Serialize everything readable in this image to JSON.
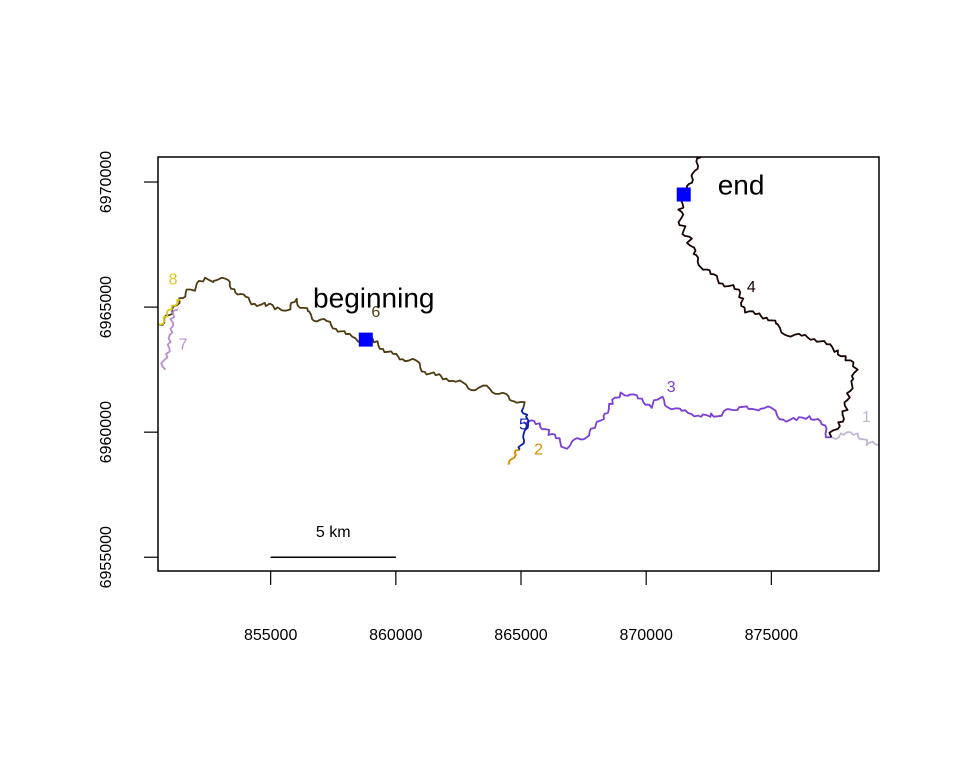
{
  "map": {
    "x_axis": {
      "range": [
        850500,
        879300
      ],
      "ticks": [
        {
          "value": 855000,
          "label": "855000"
        },
        {
          "value": 860000,
          "label": "860000"
        },
        {
          "value": 865000,
          "label": "865000"
        },
        {
          "value": 870000,
          "label": "870000"
        },
        {
          "value": 875000,
          "label": "875000"
        }
      ]
    },
    "y_axis": {
      "range": [
        6954450,
        6971000
      ],
      "ticks": [
        {
          "value": 6955000,
          "label": "6955000"
        },
        {
          "value": 6960000,
          "label": "6960000"
        },
        {
          "value": 6965000,
          "label": "6965000"
        },
        {
          "value": 6970000,
          "label": "6970000"
        }
      ]
    },
    "scale_bar": {
      "label": "5 km",
      "x_start": 855000,
      "x_end": 860000,
      "y": 6955000
    },
    "points": [
      {
        "id": "beginning",
        "label": "beginning",
        "x": 858800,
        "y": 6963700,
        "color": "#0000ff"
      },
      {
        "id": "end",
        "label": "end",
        "x": 871500,
        "y": 6969500,
        "color": "#0000ff"
      }
    ],
    "segments": [
      {
        "label": "1",
        "color": "#c0b8d4",
        "label_pos": [
          878800,
          6960400
        ],
        "path": [
          [
            877400,
            6959800
          ],
          [
            877900,
            6960000
          ],
          [
            878400,
            6959900
          ],
          [
            878800,
            6959500
          ],
          [
            879300,
            6959500
          ]
        ]
      },
      {
        "label": "2",
        "color": "#d98c00",
        "label_pos": [
          865700,
          6959100
        ],
        "path": [
          [
            864950,
            6959300
          ],
          [
            864800,
            6959000
          ],
          [
            864650,
            6959000
          ],
          [
            864500,
            6958700
          ]
        ]
      },
      {
        "label": "3",
        "color": "#7b3fd6",
        "label_pos": [
          871000,
          6961600
        ],
        "path": [
          [
            865100,
            6960400
          ],
          [
            865300,
            6960500
          ],
          [
            865700,
            6960300
          ],
          [
            866100,
            6959900
          ],
          [
            866500,
            6959700
          ],
          [
            866800,
            6959500
          ],
          [
            867200,
            6959600
          ],
          [
            867600,
            6959800
          ],
          [
            868000,
            6960300
          ],
          [
            868300,
            6960800
          ],
          [
            868700,
            6961100
          ],
          [
            869000,
            6961500
          ],
          [
            869400,
            6961600
          ],
          [
            869800,
            6961300
          ],
          [
            870200,
            6961000
          ],
          [
            870600,
            6961300
          ],
          [
            871000,
            6961100
          ],
          [
            871400,
            6960800
          ],
          [
            871800,
            6960700
          ],
          [
            872200,
            6960600
          ],
          [
            872600,
            6960800
          ],
          [
            873000,
            6960700
          ],
          [
            873400,
            6960800
          ],
          [
            873800,
            6961100
          ],
          [
            874200,
            6960900
          ],
          [
            874600,
            6961000
          ],
          [
            875000,
            6960800
          ],
          [
            875500,
            6960600
          ],
          [
            876000,
            6960500
          ],
          [
            876500,
            6960600
          ],
          [
            877000,
            6960300
          ],
          [
            877400,
            6959800
          ]
        ]
      },
      {
        "label": "4",
        "color": "#1a0505",
        "label_pos": [
          874200,
          6965600
        ],
        "path": [
          [
            872200,
            6971000
          ],
          [
            871900,
            6970200
          ],
          [
            871500,
            6969500
          ],
          [
            871300,
            6968900
          ],
          [
            871500,
            6968200
          ],
          [
            871800,
            6967600
          ],
          [
            871900,
            6967000
          ],
          [
            872200,
            6966600
          ],
          [
            872700,
            6966300
          ],
          [
            873100,
            6966000
          ],
          [
            873500,
            6965700
          ],
          [
            873800,
            6965300
          ],
          [
            874000,
            6964900
          ],
          [
            874500,
            6964700
          ],
          [
            874900,
            6964500
          ],
          [
            875200,
            6964200
          ],
          [
            875700,
            6964000
          ],
          [
            876200,
            6963800
          ],
          [
            876700,
            6963700
          ],
          [
            877200,
            6963500
          ],
          [
            877700,
            6963300
          ],
          [
            878000,
            6962900
          ],
          [
            878300,
            6962500
          ],
          [
            878300,
            6962000
          ],
          [
            878100,
            6961400
          ],
          [
            877900,
            6960800
          ],
          [
            877600,
            6960300
          ],
          [
            877400,
            6959800
          ]
        ]
      },
      {
        "label": "5",
        "color": "#0b1fb0",
        "label_pos": [
          865100,
          6960100
        ],
        "path": [
          [
            865100,
            6961000
          ],
          [
            865300,
            6960600
          ],
          [
            865200,
            6960200
          ],
          [
            865100,
            6959800
          ],
          [
            864950,
            6959500
          ],
          [
            864950,
            6959300
          ]
        ]
      },
      {
        "label": "6",
        "color": "#4d3c12",
        "label_pos": [
          859200,
          6964600
        ],
        "path": [
          [
            850500,
            6964300
          ],
          [
            851000,
            6964800
          ],
          [
            851400,
            6965300
          ],
          [
            852000,
            6965800
          ],
          [
            852400,
            6966100
          ],
          [
            852800,
            6966200
          ],
          [
            853200,
            6966000
          ],
          [
            853600,
            6965600
          ],
          [
            854000,
            6965400
          ],
          [
            854400,
            6965200
          ],
          [
            854800,
            6965000
          ],
          [
            855300,
            6964900
          ],
          [
            855700,
            6965000
          ],
          [
            856000,
            6965300
          ],
          [
            856200,
            6965000
          ],
          [
            856500,
            6964700
          ],
          [
            856800,
            6964600
          ],
          [
            857200,
            6964400
          ],
          [
            857600,
            6964100
          ],
          [
            858000,
            6963900
          ],
          [
            858400,
            6963800
          ],
          [
            858800,
            6963700
          ],
          [
            859200,
            6963500
          ],
          [
            859600,
            6963300
          ],
          [
            860000,
            6963100
          ],
          [
            860400,
            6962900
          ],
          [
            860800,
            6962700
          ],
          [
            861200,
            6962500
          ],
          [
            861600,
            6962300
          ],
          [
            862000,
            6962100
          ],
          [
            862400,
            6962000
          ],
          [
            862800,
            6961900
          ],
          [
            863200,
            6961800
          ],
          [
            863600,
            6961700
          ],
          [
            864000,
            6961600
          ],
          [
            864400,
            6961500
          ],
          [
            864800,
            6961300
          ],
          [
            865100,
            6961000
          ]
        ]
      },
      {
        "label": "7",
        "color": "#b88fd4",
        "label_pos": [
          851500,
          6963300
        ],
        "path": [
          [
            851300,
            6964900
          ],
          [
            851100,
            6964500
          ],
          [
            851000,
            6964000
          ],
          [
            850900,
            6963500
          ],
          [
            850800,
            6963000
          ],
          [
            850800,
            6962500
          ]
        ]
      },
      {
        "label": "8",
        "color": "#e0c81a",
        "label_pos": [
          851100,
          6965900
        ],
        "path": [
          [
            850500,
            6964300
          ],
          [
            850800,
            6964700
          ],
          [
            851100,
            6965000
          ],
          [
            851400,
            6965300
          ]
        ]
      }
    ]
  }
}
